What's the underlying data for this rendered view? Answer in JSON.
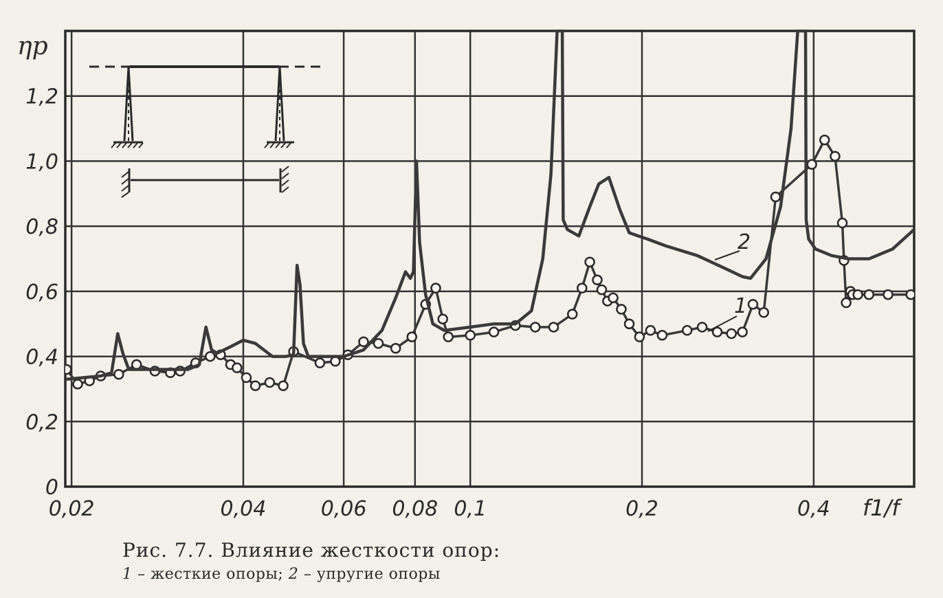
{
  "caption": {
    "line1": "Рис. 7.7. Влияние жесткости опор:",
    "legend1_num": "1",
    "legend1_text": "– жесткие опоры;",
    "legend2_num": "2",
    "legend2_text": "– упругие опоры"
  },
  "chart_data": {
    "type": "line",
    "ylabel": "ηp",
    "xlabel": "f1/f",
    "x_scale": "log",
    "xlim": [
      0.0195,
      0.6
    ],
    "ylim": [
      0,
      1.4
    ],
    "grid": true,
    "x_ticks": [
      0.02,
      0.04,
      0.06,
      0.08,
      0.1,
      0.2,
      0.4
    ],
    "x_tick_labels": [
      "0,02",
      "0,04",
      "0,06",
      "0,08",
      "0,1",
      "0,2",
      "0,4"
    ],
    "y_ticks": [
      0,
      0.2,
      0.4,
      0.6,
      0.8,
      1.0,
      1.2
    ],
    "y_tick_labels": [
      "0",
      "0,2",
      "0,4",
      "0,6",
      "0,8",
      "1,0",
      "1,2"
    ],
    "series": [
      {
        "name": "1",
        "marker": "circle",
        "x": [
          0.0196,
          0.0205,
          0.0215,
          0.0225,
          0.0242,
          0.026,
          0.028,
          0.0298,
          0.031,
          0.033,
          0.035,
          0.0365,
          0.038,
          0.039,
          0.0405,
          0.042,
          0.0445,
          0.047,
          0.049,
          0.0545,
          0.058,
          0.061,
          0.065,
          0.069,
          0.074,
          0.079,
          0.0835,
          0.087,
          0.0895,
          0.0915,
          0.1,
          0.11,
          0.12,
          0.13,
          0.14,
          0.151,
          0.157,
          0.162,
          0.167,
          0.17,
          0.174,
          0.178,
          0.184,
          0.19,
          0.198,
          0.207,
          0.217,
          0.24,
          0.255,
          0.271,
          0.287,
          0.3,
          0.313,
          0.327,
          0.343,
          0.397,
          0.418,
          0.436,
          0.449,
          0.452,
          0.456,
          0.464,
          0.468,
          0.478,
          0.5,
          0.54,
          0.592
        ],
        "values": [
          0.36,
          0.315,
          0.325,
          0.34,
          0.345,
          0.375,
          0.355,
          0.35,
          0.355,
          0.38,
          0.4,
          0.405,
          0.375,
          0.365,
          0.335,
          0.31,
          0.32,
          0.31,
          0.415,
          0.38,
          0.385,
          0.405,
          0.445,
          0.44,
          0.425,
          0.46,
          0.56,
          0.61,
          0.515,
          0.46,
          0.465,
          0.475,
          0.495,
          0.49,
          0.49,
          0.53,
          0.61,
          0.69,
          0.635,
          0.605,
          0.57,
          0.58,
          0.545,
          0.5,
          0.46,
          0.48,
          0.465,
          0.48,
          0.49,
          0.475,
          0.47,
          0.475,
          0.56,
          0.535,
          0.89,
          0.99,
          1.065,
          1.015,
          0.81,
          0.695,
          0.565,
          0.6,
          0.59,
          0.59,
          0.59,
          0.59,
          0.59
        ]
      },
      {
        "name": "2",
        "x": [
          0.0196,
          0.021,
          0.0225,
          0.0235,
          0.0241,
          0.0246,
          0.0252,
          0.026,
          0.028,
          0.03,
          0.032,
          0.0335,
          0.0344,
          0.0352,
          0.036,
          0.038,
          0.04,
          0.042,
          0.045,
          0.0475,
          0.049,
          0.0497,
          0.0503,
          0.051,
          0.052,
          0.055,
          0.06,
          0.065,
          0.07,
          0.074,
          0.077,
          0.0785,
          0.0795,
          0.0805,
          0.0815,
          0.0835,
          0.086,
          0.09,
          0.1,
          0.11,
          0.12,
          0.128,
          0.134,
          0.1385,
          0.142,
          0.144,
          0.145,
          0.1455,
          0.148,
          0.155,
          0.162,
          0.168,
          0.175,
          0.183,
          0.19,
          0.197,
          0.205,
          0.22,
          0.25,
          0.28,
          0.3,
          0.31,
          0.33,
          0.35,
          0.365,
          0.375,
          0.382,
          0.387,
          0.388,
          0.392,
          0.403,
          0.43,
          0.46,
          0.5,
          0.55,
          0.6
        ],
        "values": [
          0.33,
          0.335,
          0.34,
          0.35,
          0.47,
          0.41,
          0.36,
          0.36,
          0.36,
          0.36,
          0.36,
          0.375,
          0.49,
          0.42,
          0.41,
          0.43,
          0.45,
          0.44,
          0.4,
          0.4,
          0.405,
          0.68,
          0.62,
          0.44,
          0.4,
          0.4,
          0.4,
          0.42,
          0.48,
          0.58,
          0.66,
          0.64,
          0.66,
          1.0,
          0.75,
          0.59,
          0.5,
          0.48,
          0.49,
          0.5,
          0.5,
          0.54,
          0.7,
          0.96,
          1.4,
          1.4,
          1.4,
          0.82,
          0.79,
          0.77,
          0.86,
          0.93,
          0.95,
          0.85,
          0.78,
          0.77,
          0.76,
          0.74,
          0.71,
          0.67,
          0.645,
          0.64,
          0.7,
          0.86,
          1.1,
          1.4,
          1.4,
          1.4,
          0.82,
          0.76,
          0.73,
          0.71,
          0.7,
          0.7,
          0.73,
          0.79
        ]
      }
    ],
    "curve_labels": [
      "1",
      "2"
    ]
  }
}
